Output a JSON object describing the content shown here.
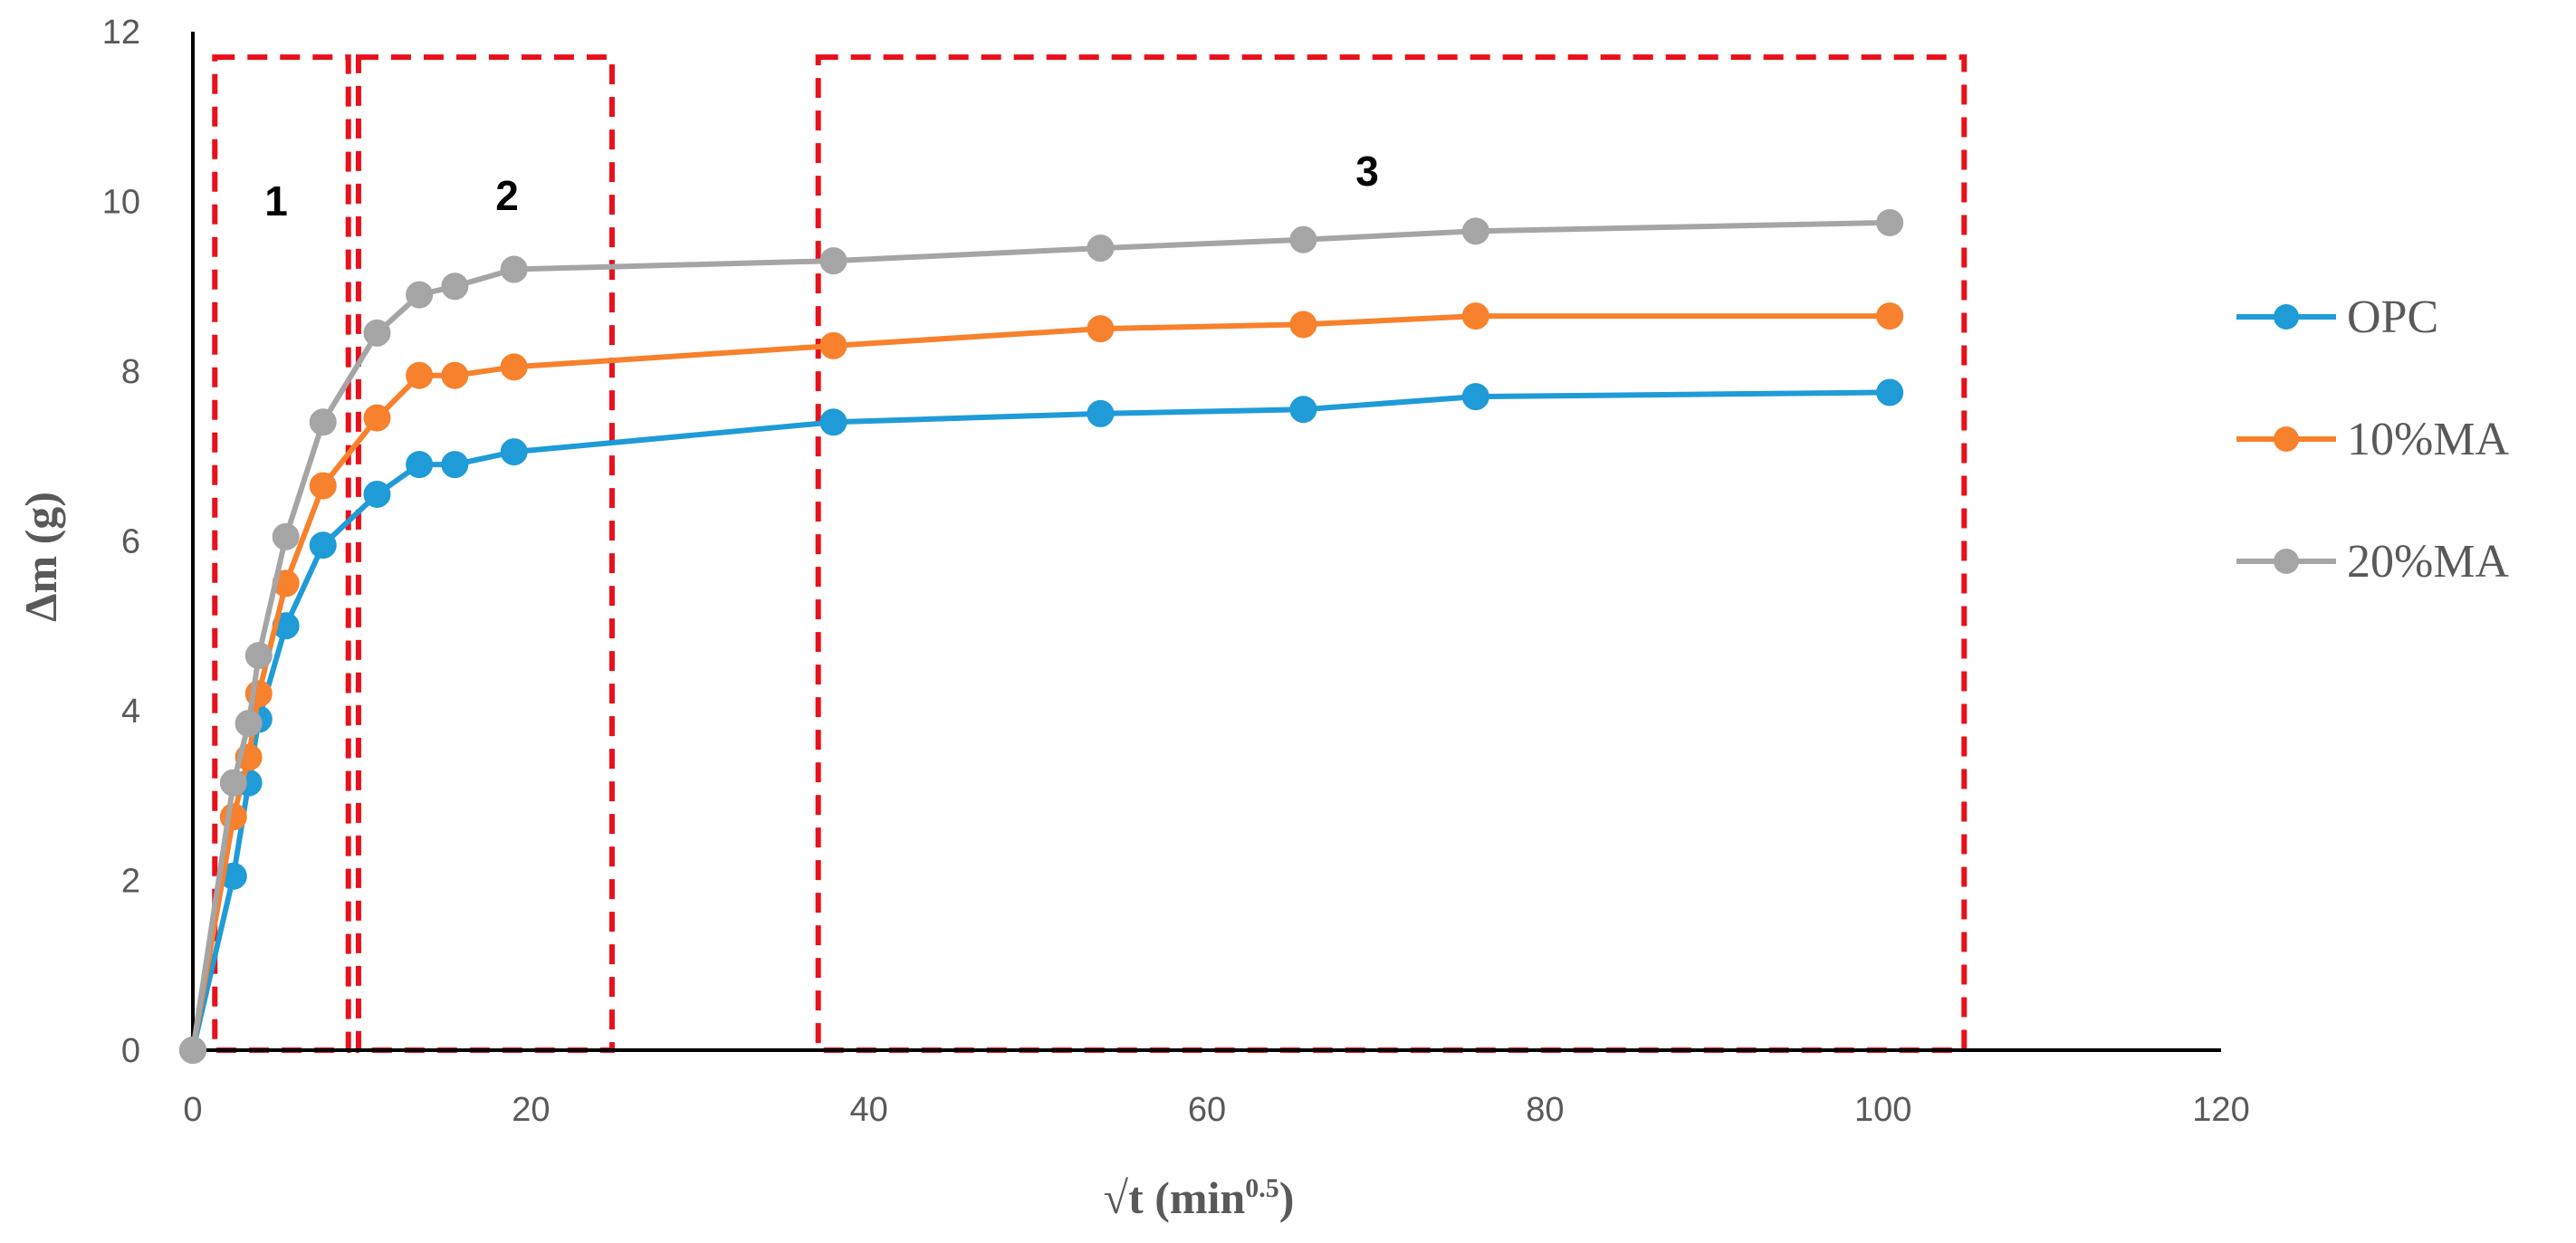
{
  "chart_data": {
    "type": "line",
    "title": "",
    "xlabel": "√t (min",
    "xlabel_sup": "0.5",
    "xlabel_close": ")",
    "ylabel": "Δm (g)",
    "xlim": [
      0,
      120
    ],
    "ylim": [
      0,
      12
    ],
    "xticks": [
      0,
      20,
      40,
      60,
      80,
      100,
      120
    ],
    "yticks": [
      0,
      2,
      4,
      6,
      8,
      10,
      12
    ],
    "grid": false,
    "legend_position": "right",
    "series": [
      {
        "name": "OPC",
        "color": "#1f9bd7",
        "x": [
          0,
          2.4,
          3.3,
          3.9,
          5.5,
          7.7,
          10.9,
          13.4,
          15.5,
          19.0,
          37.9,
          53.7,
          65.7,
          75.9,
          100.4
        ],
        "y": [
          0,
          2.05,
          3.15,
          3.9,
          5.0,
          5.95,
          6.55,
          6.9,
          6.9,
          7.05,
          7.4,
          7.5,
          7.55,
          7.7,
          7.75
        ]
      },
      {
        "name": "10%MA",
        "color": "#f7812c",
        "x": [
          0,
          2.4,
          3.3,
          3.9,
          5.5,
          7.7,
          10.9,
          13.4,
          15.5,
          19.0,
          37.9,
          53.7,
          65.7,
          75.9,
          100.4
        ],
        "y": [
          0,
          2.75,
          3.45,
          4.2,
          5.5,
          6.65,
          7.45,
          7.95,
          7.95,
          8.05,
          8.3,
          8.5,
          8.55,
          8.65,
          8.65
        ]
      },
      {
        "name": "20%MA",
        "color": "#a5a5a5",
        "x": [
          0,
          2.4,
          3.3,
          3.9,
          5.5,
          7.7,
          10.9,
          13.4,
          15.5,
          19.0,
          37.9,
          53.7,
          65.7,
          75.9,
          100.4
        ],
        "y": [
          0,
          3.15,
          3.85,
          4.65,
          6.05,
          7.4,
          8.45,
          8.9,
          9.0,
          9.2,
          9.3,
          9.45,
          9.55,
          9.65,
          9.75
        ]
      }
    ],
    "regions": [
      {
        "label": "1",
        "x_range": [
          1.3,
          9.2
        ],
        "y_range": [
          0,
          11.7
        ]
      },
      {
        "label": "2",
        "x_range": [
          9.8,
          24.8
        ],
        "y_range": [
          0,
          11.7
        ]
      },
      {
        "label": "3",
        "x_range": [
          37.0,
          104.8
        ],
        "y_range": [
          0,
          11.7
        ]
      }
    ],
    "region_color": "#e8101b"
  }
}
